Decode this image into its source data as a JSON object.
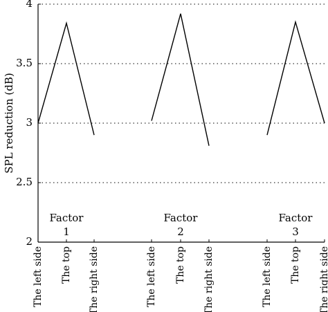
{
  "chart_data": {
    "type": "line",
    "ylabel": "SPL reduction (dB)",
    "xlabel": "",
    "ylim": [
      2,
      4
    ],
    "yticks": [
      2,
      2.5,
      3,
      3.5,
      4
    ],
    "grid": true,
    "grid_axis": "y",
    "categories": [
      "The left side",
      "The top",
      "The right side"
    ],
    "groups": [
      {
        "label": "Factor",
        "number": "1",
        "values": [
          3.0,
          3.84,
          2.9
        ]
      },
      {
        "label": "Factor",
        "number": "2",
        "values": [
          3.02,
          3.92,
          2.81
        ]
      },
      {
        "label": "Factor",
        "number": "3",
        "values": [
          2.9,
          3.85,
          3.0
        ]
      }
    ]
  }
}
